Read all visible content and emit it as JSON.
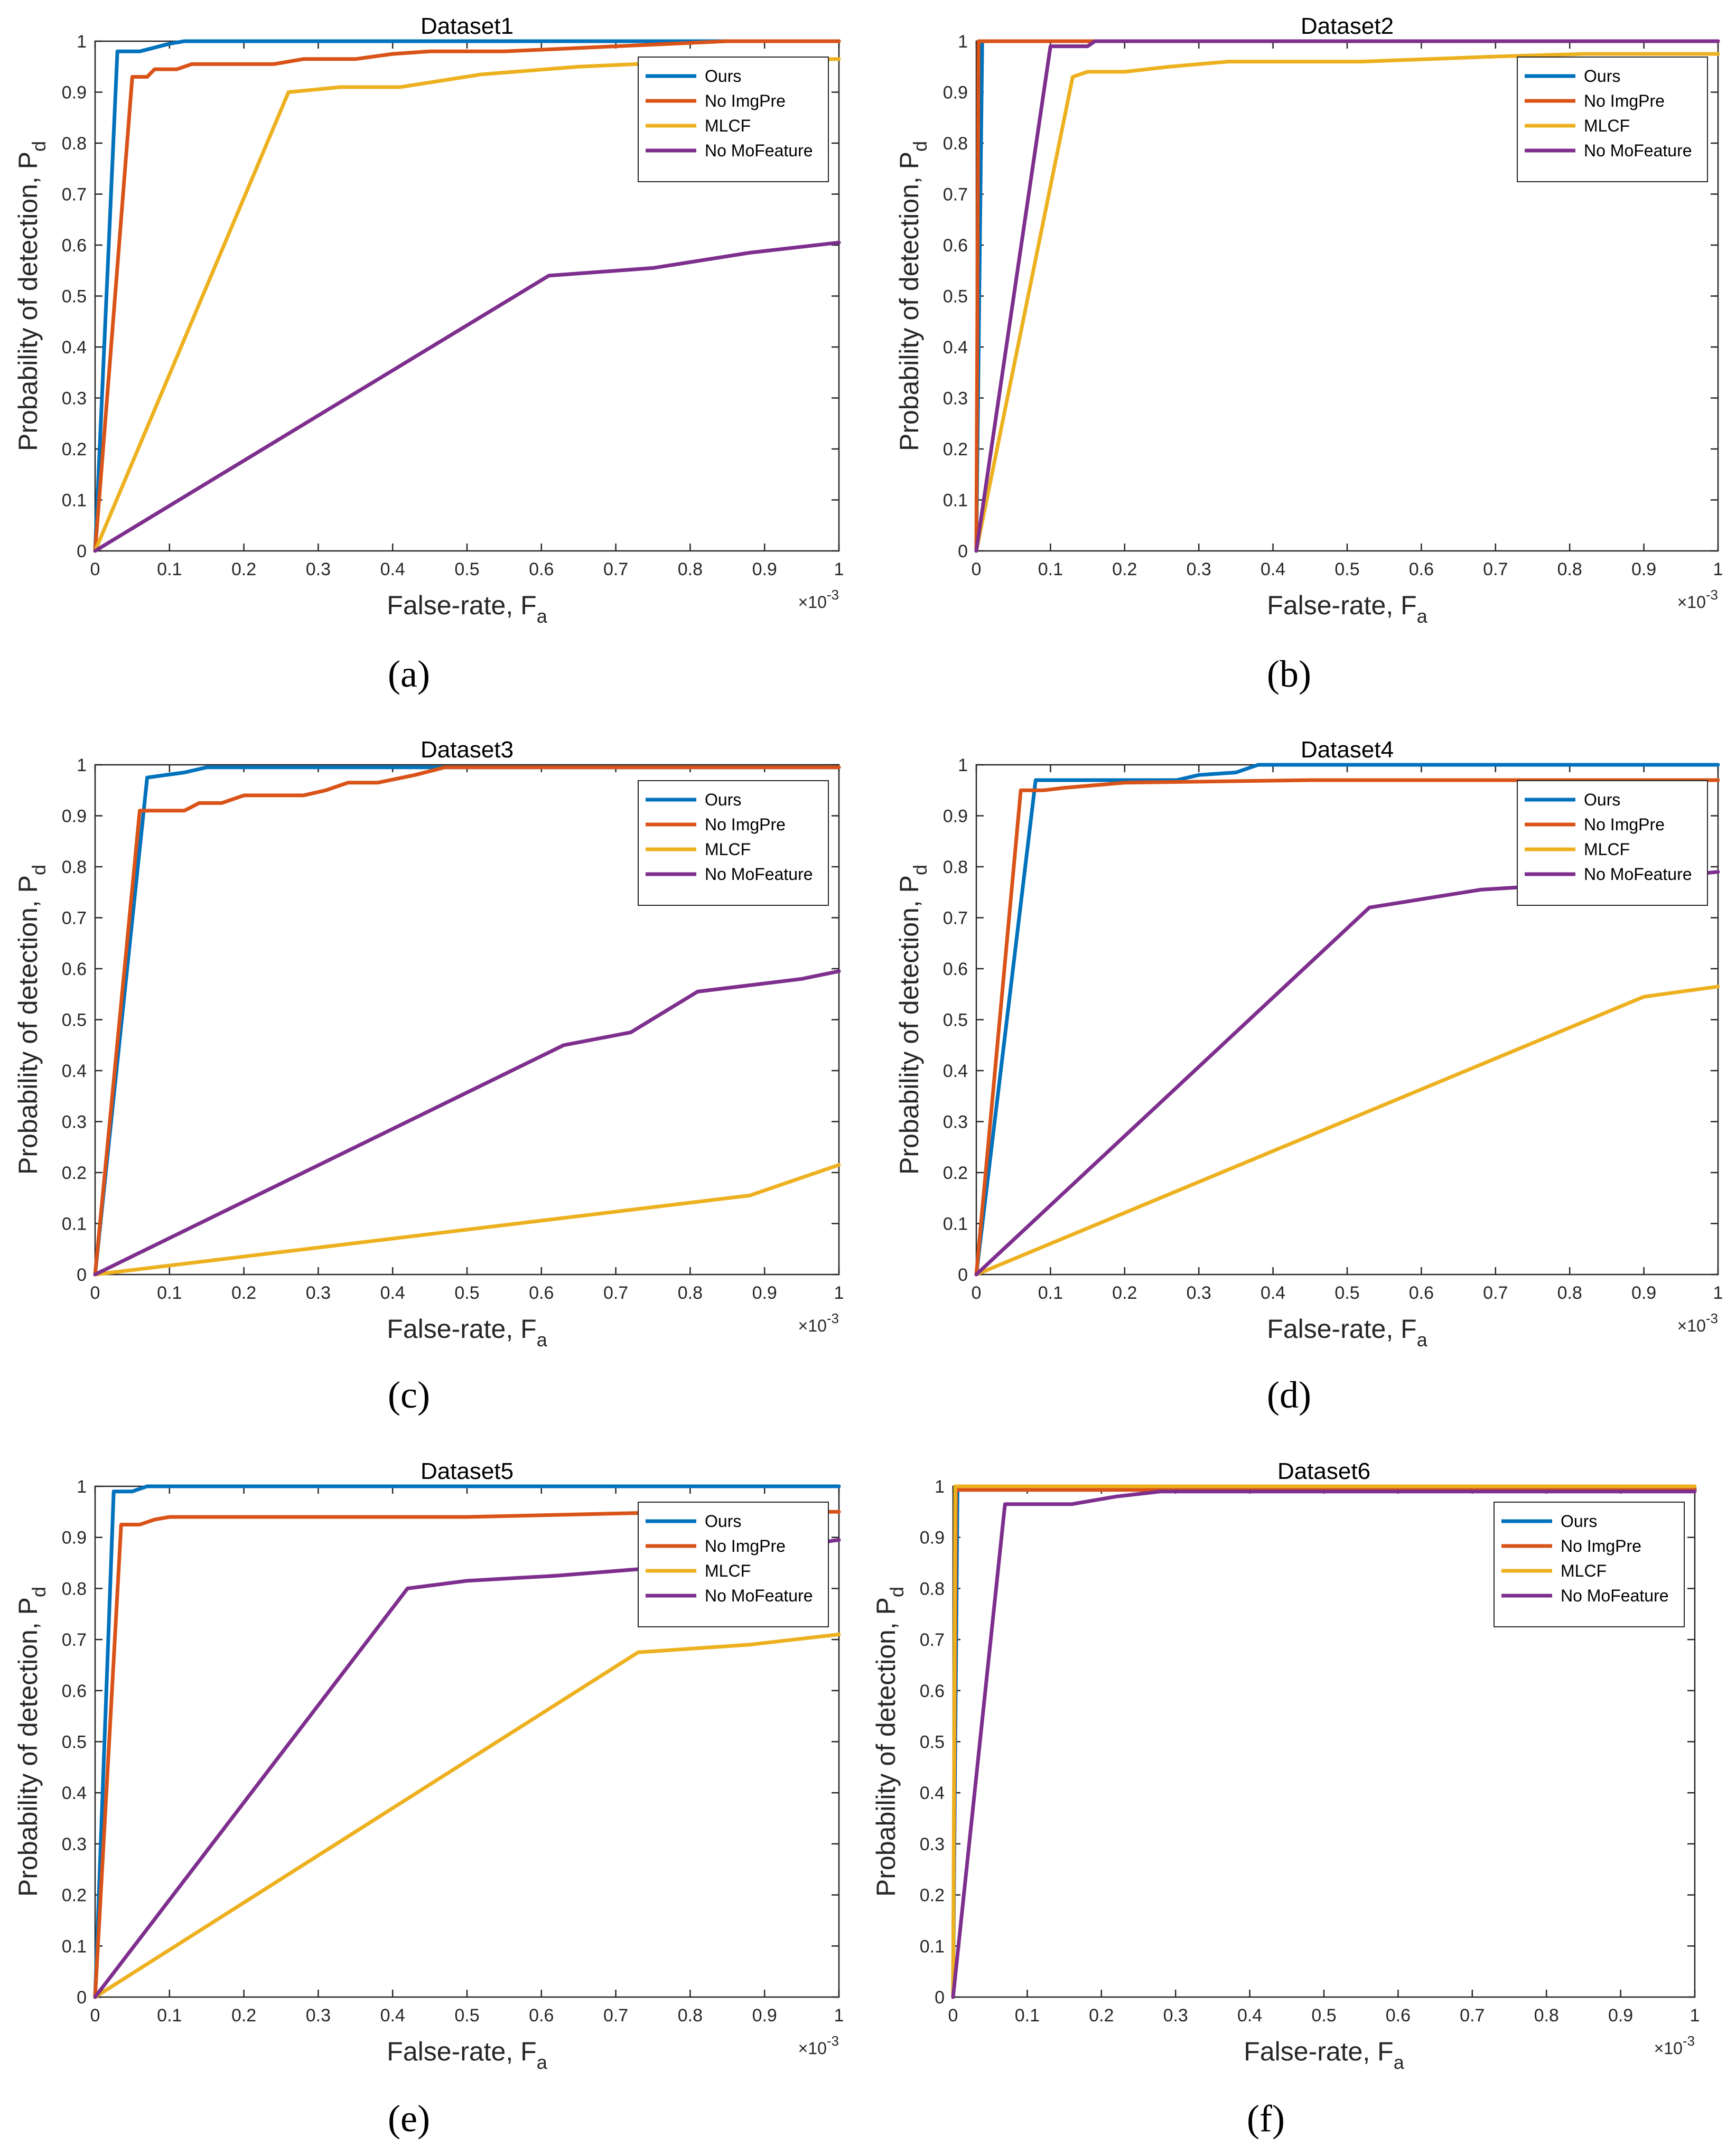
{
  "colors": {
    "Ours": "#0072BD",
    "No ImgPre": "#D95319",
    "MLCF": "#EDB120",
    "No MoFeature": "#7E2F8E"
  },
  "chart_data": [
    {
      "type": "line",
      "title": "Dataset1",
      "caption": "(a)",
      "xlabel": "False-rate, F",
      "xlabel_sub": "a",
      "ylabel": "Probability of detection, P",
      "ylabel_sub": "d",
      "x_exponent_base": "×10",
      "x_exponent_power": "-3",
      "xlim": [
        0,
        1
      ],
      "ylim": [
        0,
        1
      ],
      "xticks": [
        "0",
        "0.1",
        "0.2",
        "0.3",
        "0.4",
        "0.5",
        "0.6",
        "0.7",
        "0.8",
        "0.9",
        "1"
      ],
      "yticks": [
        "0",
        "0.1",
        "0.2",
        "0.3",
        "0.4",
        "0.5",
        "0.6",
        "0.7",
        "0.8",
        "0.9",
        "1"
      ],
      "legend": [
        "Ours",
        "No ImgPre",
        "MLCF",
        "No MoFeature"
      ],
      "legend_position": "top-right",
      "series": [
        {
          "name": "Ours",
          "x": [
            0,
            0.03,
            0.06,
            0.1,
            0.12,
            1
          ],
          "y": [
            0,
            0.98,
            0.98,
            0.995,
            1,
            1
          ]
        },
        {
          "name": "No ImgPre",
          "x": [
            0,
            0.05,
            0.07,
            0.08,
            0.1,
            0.11,
            0.13,
            0.24,
            0.28,
            0.35,
            0.4,
            0.45,
            0.55,
            0.7,
            0.85,
            1
          ],
          "y": [
            0,
            0.93,
            0.93,
            0.945,
            0.945,
            0.945,
            0.955,
            0.955,
            0.965,
            0.965,
            0.975,
            0.98,
            0.98,
            0.99,
            1,
            1
          ]
        },
        {
          "name": "MLCF",
          "x": [
            0,
            0.26,
            0.33,
            0.41,
            0.52,
            0.65,
            0.8,
            1
          ],
          "y": [
            0,
            0.9,
            0.91,
            0.91,
            0.935,
            0.95,
            0.96,
            0.965
          ]
        },
        {
          "name": "No MoFeature",
          "x": [
            0,
            0.61,
            0.75,
            0.88,
            1
          ],
          "y": [
            0,
            0.54,
            0.555,
            0.585,
            0.605
          ]
        }
      ]
    },
    {
      "type": "line",
      "title": "Dataset2",
      "caption": "(b)",
      "xlabel": "False-rate, F",
      "xlabel_sub": "a",
      "ylabel": "Probability of detection, P",
      "ylabel_sub": "d",
      "x_exponent_base": "×10",
      "x_exponent_power": "-3",
      "xlim": [
        0,
        1
      ],
      "ylim": [
        0,
        1
      ],
      "xticks": [
        "0",
        "0.1",
        "0.2",
        "0.3",
        "0.4",
        "0.5",
        "0.6",
        "0.7",
        "0.8",
        "0.9",
        "1"
      ],
      "yticks": [
        "0",
        "0.1",
        "0.2",
        "0.3",
        "0.4",
        "0.5",
        "0.6",
        "0.7",
        "0.8",
        "0.9",
        "1"
      ],
      "legend": [
        "Ours",
        "No ImgPre",
        "MLCF",
        "No MoFeature"
      ],
      "legend_position": "top-right",
      "series": [
        {
          "name": "Ours",
          "x": [
            0,
            0.008,
            1
          ],
          "y": [
            0,
            1,
            1
          ]
        },
        {
          "name": "No ImgPre",
          "x": [
            0,
            0.003,
            1
          ],
          "y": [
            0,
            1,
            1
          ]
        },
        {
          "name": "MLCF",
          "x": [
            0,
            0.13,
            0.15,
            0.2,
            0.26,
            0.34,
            0.52,
            0.7,
            0.82,
            1
          ],
          "y": [
            0,
            0.93,
            0.94,
            0.94,
            0.95,
            0.96,
            0.96,
            0.97,
            0.975,
            0.975
          ]
        },
        {
          "name": "No MoFeature",
          "x": [
            0,
            0.1,
            0.15,
            0.16,
            1
          ],
          "y": [
            0,
            0.99,
            0.99,
            1,
            1
          ]
        }
      ]
    },
    {
      "type": "line",
      "title": "Dataset3",
      "caption": "(c)",
      "xlabel": "False-rate, F",
      "xlabel_sub": "a",
      "ylabel": "Probability of detection, P",
      "ylabel_sub": "d",
      "x_exponent_base": "×10",
      "x_exponent_power": "-3",
      "xlim": [
        0,
        1
      ],
      "ylim": [
        0,
        1
      ],
      "xticks": [
        "0",
        "0.1",
        "0.2",
        "0.3",
        "0.4",
        "0.5",
        "0.6",
        "0.7",
        "0.8",
        "0.9",
        "1"
      ],
      "yticks": [
        "0",
        "0.1",
        "0.2",
        "0.3",
        "0.4",
        "0.5",
        "0.6",
        "0.7",
        "0.8",
        "0.9",
        "1"
      ],
      "legend": [
        "Ours",
        "No ImgPre",
        "MLCF",
        "No MoFeature"
      ],
      "legend_position": "top-right",
      "series": [
        {
          "name": "Ours",
          "x": [
            0,
            0.07,
            0.12,
            0.15,
            1
          ],
          "y": [
            0,
            0.975,
            0.985,
            0.995,
            0.995
          ]
        },
        {
          "name": "No ImgPre",
          "x": [
            0,
            0.06,
            0.12,
            0.14,
            0.17,
            0.2,
            0.28,
            0.31,
            0.34,
            0.38,
            0.43,
            0.47,
            0.5,
            1
          ],
          "y": [
            0,
            0.91,
            0.91,
            0.925,
            0.925,
            0.94,
            0.94,
            0.95,
            0.965,
            0.965,
            0.98,
            0.995,
            0.995,
            0.995
          ]
        },
        {
          "name": "MLCF",
          "x": [
            0,
            0.88,
            1
          ],
          "y": [
            0,
            0.155,
            0.215
          ]
        },
        {
          "name": "No MoFeature",
          "x": [
            0,
            0.63,
            0.72,
            0.81,
            0.95,
            1
          ],
          "y": [
            0,
            0.45,
            0.475,
            0.555,
            0.58,
            0.595
          ]
        }
      ]
    },
    {
      "type": "line",
      "title": "Dataset4",
      "caption": "(d)",
      "xlabel": "False-rate, F",
      "xlabel_sub": "a",
      "ylabel": "Probability of detection, P",
      "ylabel_sub": "d",
      "x_exponent_base": "×10",
      "x_exponent_power": "-3",
      "xlim": [
        0,
        1
      ],
      "ylim": [
        0,
        1
      ],
      "xticks": [
        "0",
        "0.1",
        "0.2",
        "0.3",
        "0.4",
        "0.5",
        "0.6",
        "0.7",
        "0.8",
        "0.9",
        "1"
      ],
      "yticks": [
        "0",
        "0.1",
        "0.2",
        "0.3",
        "0.4",
        "0.5",
        "0.6",
        "0.7",
        "0.8",
        "0.9",
        "1"
      ],
      "legend": [
        "Ours",
        "No ImgPre",
        "MLCF",
        "No MoFeature"
      ],
      "legend_position": "top-right",
      "series": [
        {
          "name": "Ours",
          "x": [
            0,
            0.08,
            0.27,
            0.3,
            0.35,
            0.38,
            1
          ],
          "y": [
            0,
            0.97,
            0.97,
            0.98,
            0.985,
            1,
            1
          ]
        },
        {
          "name": "No ImgPre",
          "x": [
            0,
            0.06,
            0.09,
            0.12,
            0.16,
            0.2,
            0.45,
            1
          ],
          "y": [
            0,
            0.95,
            0.95,
            0.955,
            0.96,
            0.965,
            0.97,
            0.97
          ]
        },
        {
          "name": "MLCF",
          "x": [
            0,
            0.9,
            1
          ],
          "y": [
            0,
            0.545,
            0.565
          ]
        },
        {
          "name": "No MoFeature",
          "x": [
            0,
            0.53,
            0.68,
            0.85,
            1
          ],
          "y": [
            0,
            0.72,
            0.755,
            0.77,
            0.79
          ]
        }
      ]
    },
    {
      "type": "line",
      "title": "Dataset5",
      "caption": "(e)",
      "xlabel": "False-rate, F",
      "xlabel_sub": "a",
      "ylabel": "Probability of detection, P",
      "ylabel_sub": "d",
      "x_exponent_base": "×10",
      "x_exponent_power": "-3",
      "xlim": [
        0,
        1
      ],
      "ylim": [
        0,
        1
      ],
      "xticks": [
        "0",
        "0.1",
        "0.2",
        "0.3",
        "0.4",
        "0.5",
        "0.6",
        "0.7",
        "0.8",
        "0.9",
        "1"
      ],
      "yticks": [
        "0",
        "0.1",
        "0.2",
        "0.3",
        "0.4",
        "0.5",
        "0.6",
        "0.7",
        "0.8",
        "0.9",
        "1"
      ],
      "legend": [
        "Ours",
        "No ImgPre",
        "MLCF",
        "No MoFeature"
      ],
      "legend_position": "top-right",
      "series": [
        {
          "name": "Ours",
          "x": [
            0,
            0.025,
            0.05,
            0.07,
            1
          ],
          "y": [
            0,
            0.99,
            0.99,
            1,
            1
          ]
        },
        {
          "name": "No ImgPre",
          "x": [
            0,
            0.035,
            0.06,
            0.08,
            0.1,
            0.5,
            0.8,
            1
          ],
          "y": [
            0,
            0.925,
            0.925,
            0.935,
            0.94,
            0.94,
            0.95,
            0.95
          ]
        },
        {
          "name": "MLCF",
          "x": [
            0,
            0.73,
            0.88,
            1
          ],
          "y": [
            0,
            0.675,
            0.69,
            0.71
          ]
        },
        {
          "name": "No MoFeature",
          "x": [
            0,
            0.42,
            0.5,
            0.62,
            0.75,
            0.87,
            1
          ],
          "y": [
            0,
            0.8,
            0.815,
            0.825,
            0.84,
            0.87,
            0.895
          ]
        }
      ]
    },
    {
      "type": "line",
      "title": "Dataset6",
      "caption": "(f)",
      "xlabel": "False-rate, F",
      "xlabel_sub": "a",
      "ylabel": "Probability of detection, P",
      "ylabel_sub": "d",
      "x_exponent_base": "×10",
      "x_exponent_power": "-3",
      "xlim": [
        0,
        1
      ],
      "ylim": [
        0,
        1
      ],
      "xticks": [
        "0",
        "0.1",
        "0.2",
        "0.3",
        "0.4",
        "0.5",
        "0.6",
        "0.7",
        "0.8",
        "0.9",
        "1"
      ],
      "yticks": [
        "0",
        "0.1",
        "0.2",
        "0.3",
        "0.4",
        "0.5",
        "0.6",
        "0.7",
        "0.8",
        "0.9",
        "1"
      ],
      "legend": [
        "Ours",
        "No ImgPre",
        "MLCF",
        "No MoFeature"
      ],
      "legend_position": "top-right",
      "series": [
        {
          "name": "Ours",
          "x": [
            0,
            0.006,
            1
          ],
          "y": [
            0,
            0.995,
            0.995
          ]
        },
        {
          "name": "No ImgPre",
          "x": [
            0,
            0.004,
            1
          ],
          "y": [
            0,
            0.993,
            0.993
          ]
        },
        {
          "name": "MLCF",
          "x": [
            0,
            0.003,
            1
          ],
          "y": [
            0,
            1,
            1
          ]
        },
        {
          "name": "No MoFeature",
          "x": [
            0,
            0.07,
            0.16,
            0.22,
            0.28,
            1
          ],
          "y": [
            0,
            0.965,
            0.965,
            0.98,
            0.99,
            0.99
          ]
        }
      ]
    }
  ]
}
